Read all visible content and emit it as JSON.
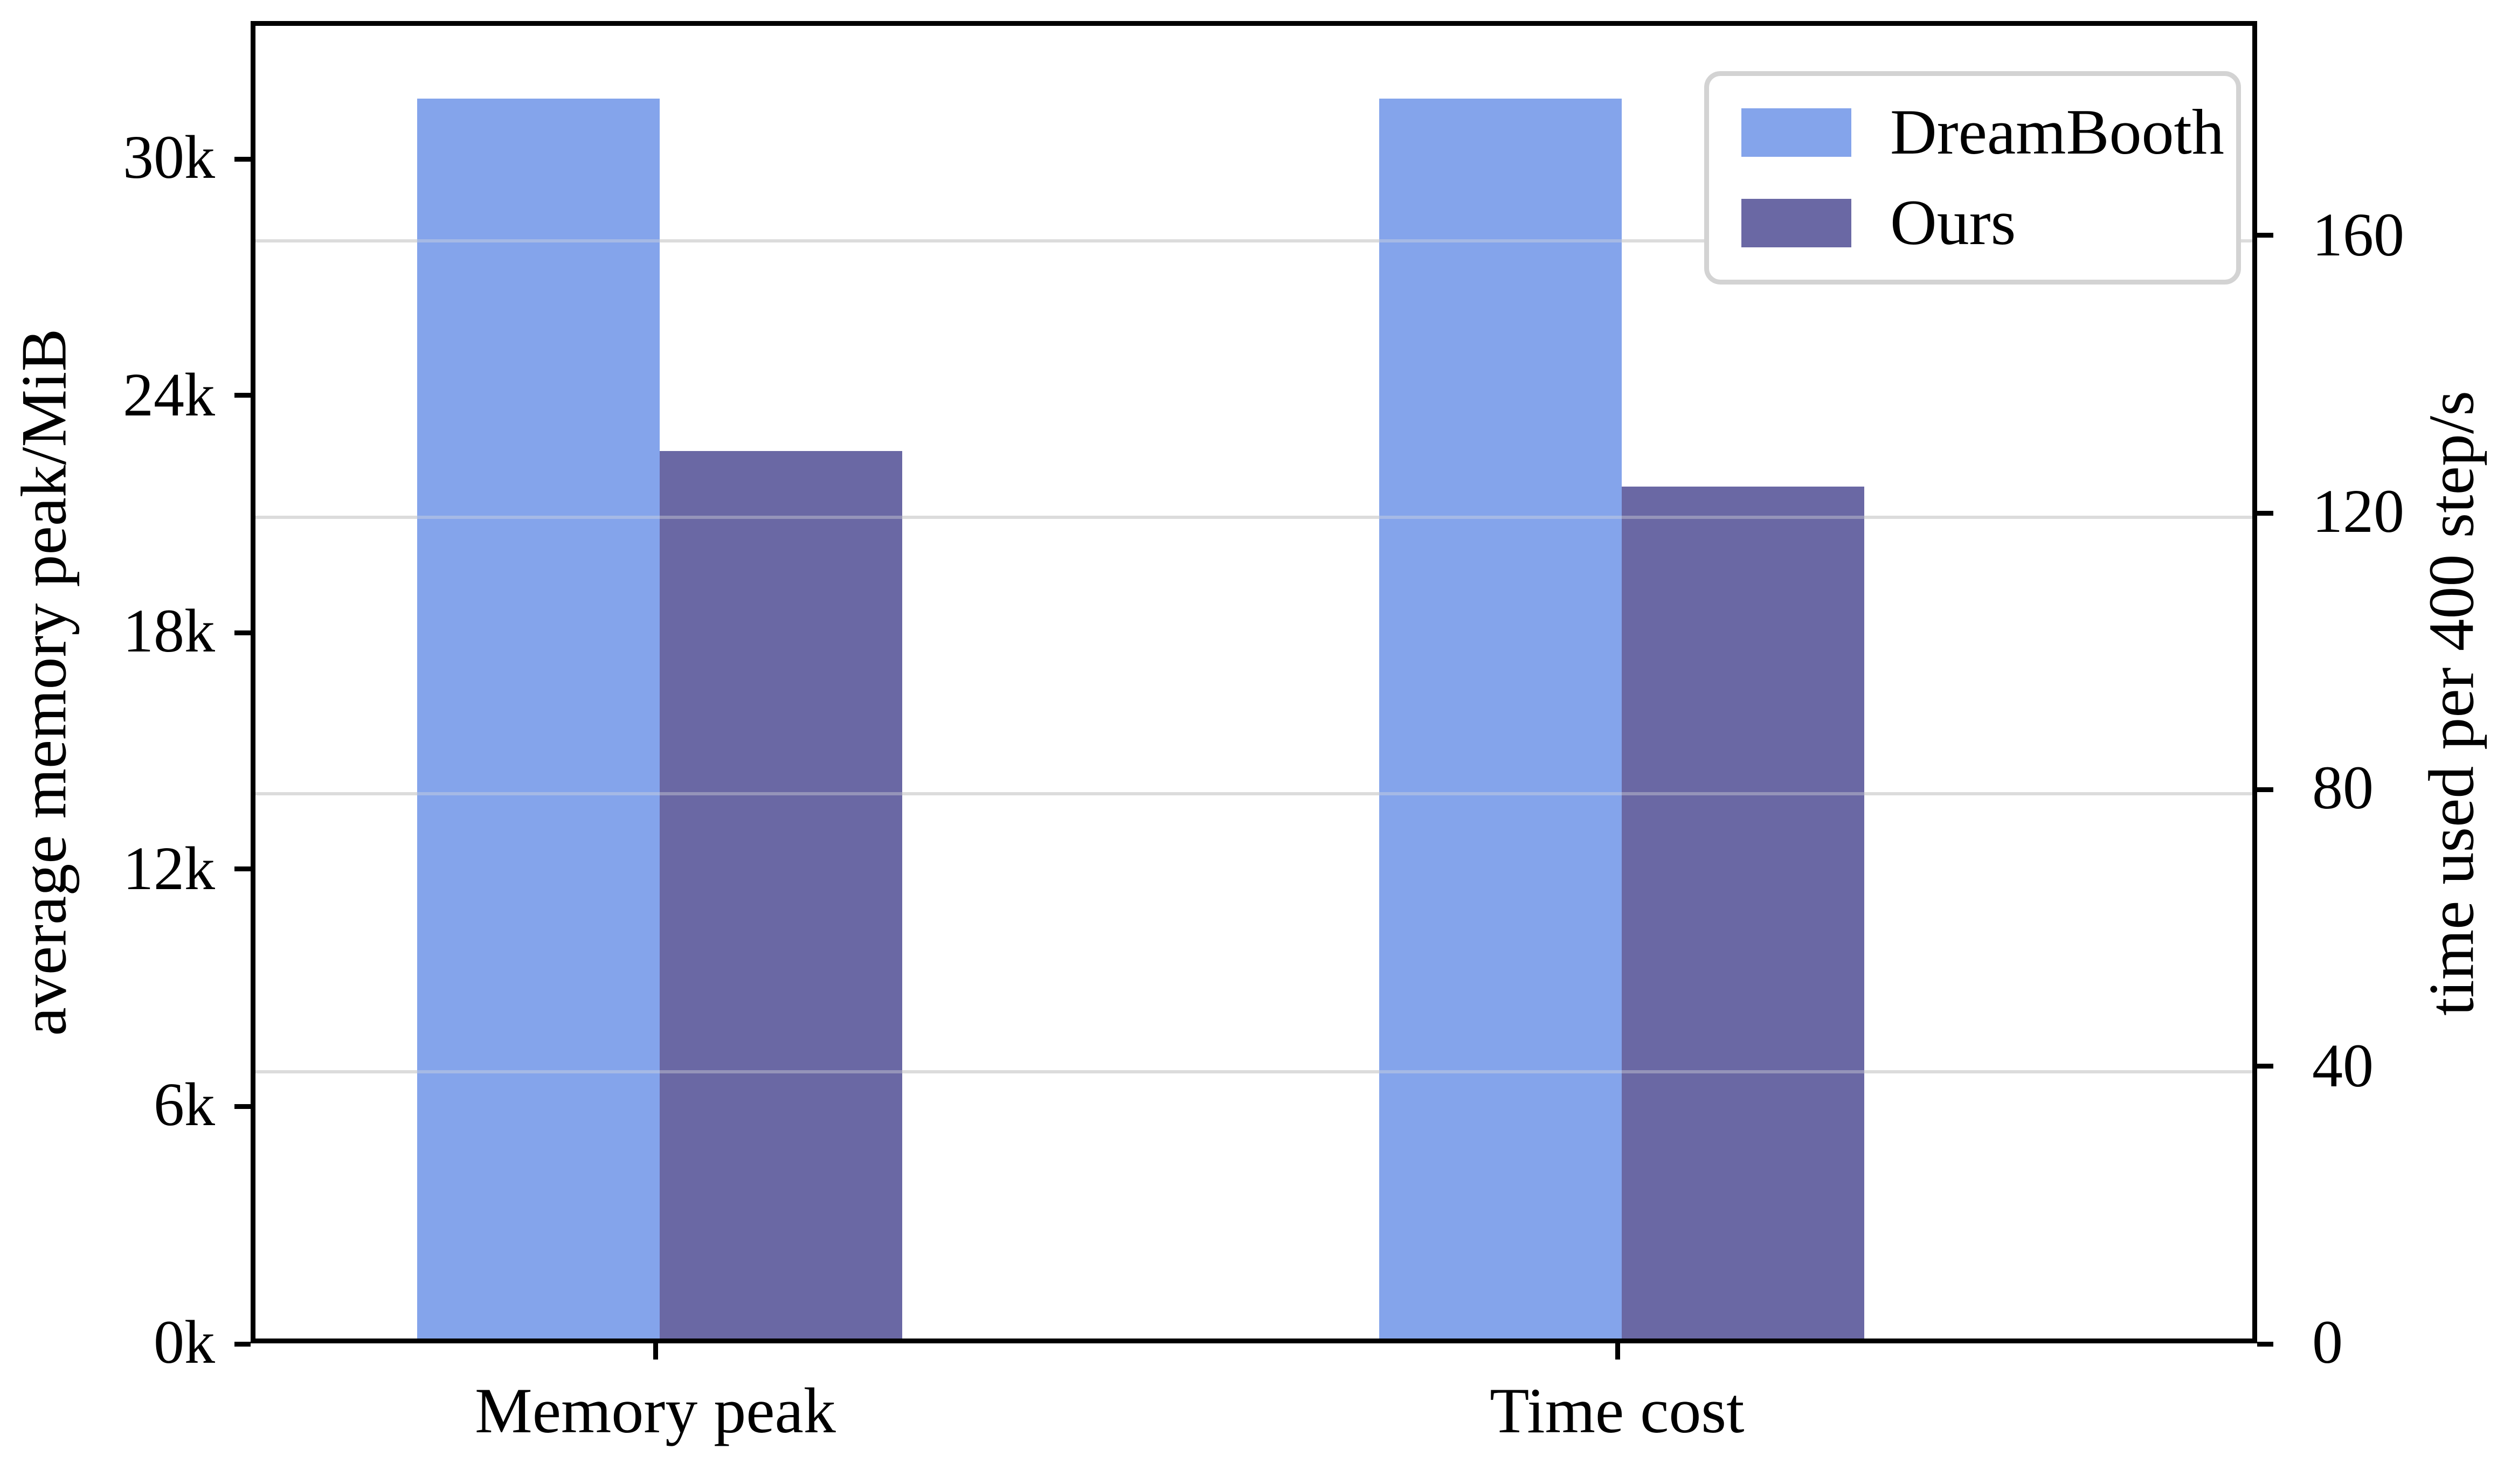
{
  "chart_data": {
    "type": "bar",
    "categories": [
      "Memory peak",
      "Time cost"
    ],
    "category_value_axis": [
      "left",
      "right"
    ],
    "category_units": [
      "MiB",
      "s"
    ],
    "series": [
      {
        "name": "DreamBooth",
        "color": "#84A4EB",
        "values": [
          31400,
          179
        ]
      },
      {
        "name": "Ours",
        "color": "#6A68A4",
        "values": [
          22500,
          123
        ]
      }
    ],
    "left_axis": {
      "label": "average memory peak/MiB",
      "ticks": [
        {
          "value": 0,
          "label": "0k"
        },
        {
          "value": 6000,
          "label": "6k"
        },
        {
          "value": 12000,
          "label": "12k"
        },
        {
          "value": 18000,
          "label": "18k"
        },
        {
          "value": 24000,
          "label": "24k"
        },
        {
          "value": 30000,
          "label": "30k"
        }
      ],
      "min": 0,
      "max": 33500
    },
    "right_axis": {
      "label": "time used per 400 step/s",
      "ticks": [
        {
          "value": 0,
          "label": "0"
        },
        {
          "value": 40,
          "label": "40"
        },
        {
          "value": 80,
          "label": "80"
        },
        {
          "value": 120,
          "label": "120"
        },
        {
          "value": 160,
          "label": "160"
        }
      ],
      "min": 0,
      "max": 191
    },
    "grid": {
      "on": true,
      "tick_source": "right",
      "color": "#dcdcdc"
    },
    "legend": {
      "position": "upper right",
      "entries": [
        "DreamBooth",
        "Ours"
      ]
    },
    "frame_color": "#000000",
    "background_color": "#ffffff"
  }
}
